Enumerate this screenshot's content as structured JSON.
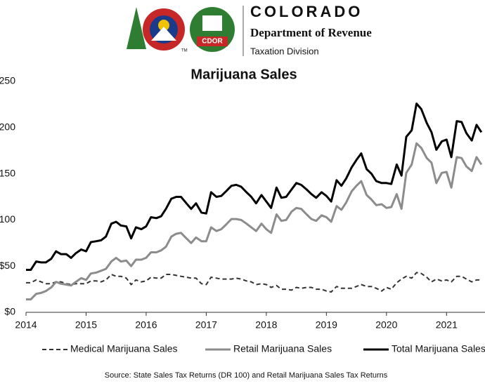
{
  "header": {
    "state": "COLORADO",
    "department": "Department of Revenue",
    "division": "Taxation Division",
    "badge": "CDOR",
    "trademark": "TM"
  },
  "chart_data": {
    "type": "line",
    "title": "Marijuana Sales",
    "source": "Source: State Sales Tax Returns (DR 100) and Retail Marijuana  Sales Tax Returns",
    "x": [
      2014,
      2014.08,
      2014.17,
      2014.25,
      2014.33,
      2014.42,
      2014.5,
      2014.58,
      2014.67,
      2014.75,
      2014.83,
      2014.92,
      2015,
      2015.08,
      2015.17,
      2015.25,
      2015.33,
      2015.42,
      2015.5,
      2015.58,
      2015.67,
      2015.75,
      2015.83,
      2015.92,
      2016,
      2016.08,
      2016.17,
      2016.25,
      2016.33,
      2016.42,
      2016.5,
      2016.58,
      2016.67,
      2016.75,
      2016.83,
      2016.92,
      2017,
      2017.08,
      2017.17,
      2017.25,
      2017.33,
      2017.42,
      2017.5,
      2017.58,
      2017.67,
      2017.75,
      2017.83,
      2017.92,
      2018,
      2018.08,
      2018.17,
      2018.25,
      2018.33,
      2018.42,
      2018.5,
      2018.58,
      2018.67,
      2018.75,
      2018.83,
      2018.92,
      2019,
      2019.08,
      2019.17,
      2019.25,
      2019.33,
      2019.42,
      2019.5,
      2019.58,
      2019.67,
      2019.75,
      2019.83,
      2019.92,
      2020,
      2020.08,
      2020.17,
      2020.25,
      2020.33,
      2020.42,
      2020.5,
      2020.58,
      2020.67,
      2020.75,
      2020.83,
      2020.92,
      2021,
      2021.08,
      2021.17,
      2021.25,
      2021.33,
      2021.42,
      2021.5,
      2021.58
    ],
    "series": [
      {
        "name": "Medical Marijuana Sales",
        "color": "#333333",
        "dash": true,
        "values": [
          32,
          32,
          35,
          33,
          31,
          31,
          33,
          33,
          31,
          30,
          31,
          31,
          31,
          34,
          34,
          33,
          35,
          41,
          39,
          39,
          37,
          30,
          35,
          33,
          34,
          38,
          37,
          37,
          41,
          41,
          40,
          39,
          38,
          37,
          37,
          31,
          30,
          38,
          37,
          36,
          36,
          36,
          37,
          36,
          34,
          33,
          30,
          31,
          30,
          27,
          29,
          25,
          25,
          24,
          27,
          26,
          27,
          27,
          25,
          25,
          23,
          22,
          28,
          26,
          26,
          26,
          28,
          30,
          28,
          28,
          26,
          23,
          27,
          25,
          32,
          36,
          39,
          37,
          43,
          42,
          38,
          33,
          36,
          34,
          35,
          33,
          39,
          39,
          36,
          33,
          35,
          35
        ]
      },
      {
        "name": "Retail Marijuana Sales",
        "color": "#8c8c8c",
        "dash": false,
        "values": [
          14,
          14,
          20,
          21,
          23,
          27,
          33,
          31,
          30,
          29,
          33,
          37,
          35,
          42,
          43,
          45,
          47,
          55,
          59,
          55,
          56,
          50,
          57,
          57,
          59,
          65,
          65,
          67,
          71,
          82,
          85,
          86,
          80,
          75,
          81,
          77,
          77,
          92,
          88,
          90,
          95,
          101,
          101,
          100,
          96,
          92,
          88,
          96,
          90,
          86,
          106,
          99,
          100,
          109,
          113,
          112,
          106,
          101,
          99,
          105,
          103,
          98,
          115,
          111,
          119,
          131,
          137,
          142,
          127,
          122,
          116,
          117,
          113,
          114,
          128,
          112,
          151,
          160,
          183,
          178,
          167,
          162,
          140,
          151,
          152,
          135,
          168,
          167,
          158,
          153,
          168,
          160
        ]
      },
      {
        "name": "Total Marijuana Sales",
        "color": "#000000",
        "dash": false,
        "values": [
          46,
          46,
          55,
          54,
          54,
          58,
          66,
          63,
          63,
          59,
          64,
          68,
          66,
          76,
          77,
          78,
          82,
          96,
          98,
          94,
          93,
          80,
          92,
          90,
          93,
          103,
          102,
          104,
          112,
          123,
          125,
          125,
          118,
          112,
          118,
          108,
          107,
          130,
          125,
          126,
          131,
          137,
          138,
          136,
          130,
          125,
          118,
          127,
          120,
          113,
          135,
          124,
          125,
          133,
          140,
          138,
          133,
          128,
          124,
          130,
          126,
          120,
          143,
          137,
          145,
          157,
          165,
          172,
          155,
          150,
          142,
          140,
          140,
          139,
          160,
          148,
          190,
          197,
          226,
          220,
          205,
          195,
          176,
          185,
          187,
          168,
          207,
          206,
          194,
          186,
          203,
          195
        ]
      }
    ],
    "xlim": [
      2014,
      2021.64
    ],
    "xticks": [
      2014,
      2015,
      2016,
      2017,
      2018,
      2019,
      2020,
      2021
    ],
    "ylim": [
      0,
      250
    ],
    "yticks": [
      {
        "value": 0,
        "label": "$0"
      },
      {
        "value": 50,
        "label": "$50"
      },
      {
        "value": 100,
        "label": "$100"
      },
      {
        "value": 150,
        "label": "$150"
      },
      {
        "value": 200,
        "label": "$200"
      },
      {
        "value": 250,
        "label": "$250"
      }
    ]
  }
}
